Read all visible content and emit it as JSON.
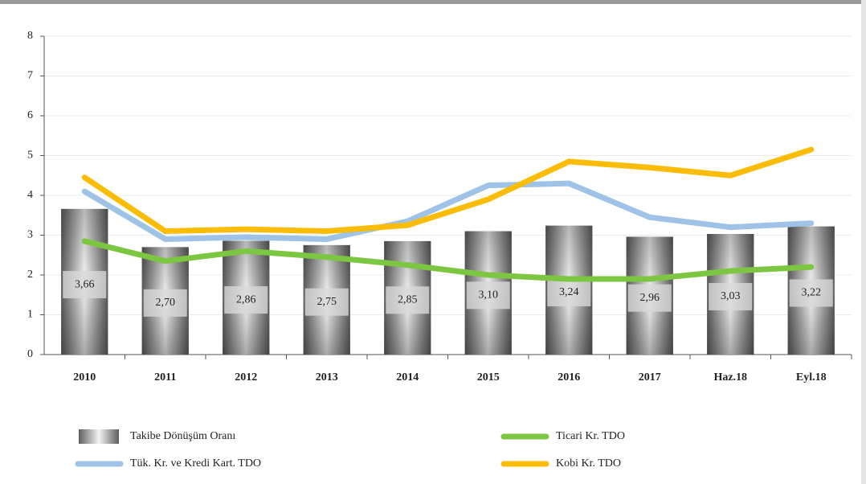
{
  "chart_data": {
    "type": "bar",
    "categories": [
      "2010",
      "2011",
      "2012",
      "2013",
      "2014",
      "2015",
      "2016",
      "2017",
      "Haz.18",
      "Eyl.18"
    ],
    "series": [
      {
        "name": "Takibe Dönüşüm Oranı",
        "type": "bar",
        "color": "#8a8a8a",
        "values": [
          3.66,
          2.7,
          2.86,
          2.75,
          2.85,
          3.1,
          3.24,
          2.96,
          3.03,
          3.22
        ],
        "value_labels": [
          "3,66",
          "2,70",
          "2,86",
          "2,75",
          "2,85",
          "3,10",
          "3,24",
          "2,96",
          "3,03",
          "3,22"
        ]
      },
      {
        "name": "Tük. Kr. ve Kredi Kart. TDO",
        "type": "line",
        "color": "#9ec3e6",
        "values": [
          4.1,
          2.9,
          2.95,
          2.9,
          3.35,
          4.25,
          4.3,
          3.45,
          3.2,
          3.3
        ]
      },
      {
        "name": "Ticari Kr. TDO",
        "type": "line",
        "color": "#7dc641",
        "values": [
          2.85,
          2.35,
          2.6,
          2.45,
          2.25,
          2.0,
          1.9,
          1.9,
          2.1,
          2.2
        ]
      },
      {
        "name": "Kobi Kr. TDO",
        "type": "line",
        "color": "#fbbc05",
        "values": [
          4.45,
          3.1,
          3.15,
          3.1,
          3.25,
          3.9,
          4.85,
          4.7,
          4.5,
          5.15
        ]
      }
    ],
    "ylim": [
      0,
      8
    ],
    "yticks": [
      0,
      1,
      2,
      3,
      4,
      5,
      6,
      7,
      8
    ],
    "grid": true
  }
}
